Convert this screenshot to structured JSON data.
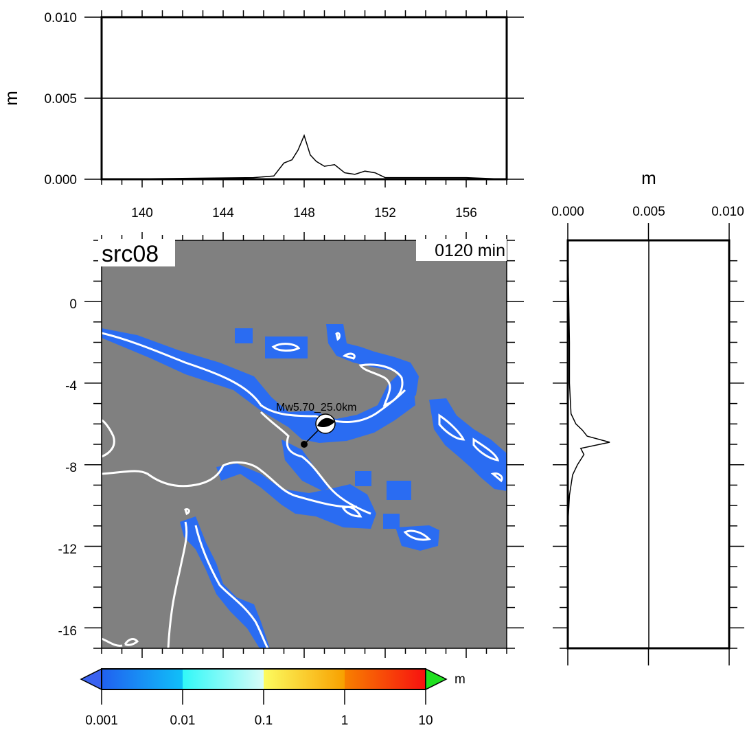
{
  "top_panel": {
    "ylabel": "m",
    "y_ticks": [
      "0.000",
      "0.005",
      "0.010"
    ],
    "x_ticks": [
      "140",
      "144",
      "148",
      "152",
      "156"
    ]
  },
  "side_panel": {
    "xlabel": "m",
    "x_ticks": [
      "0.000",
      "0.005",
      "0.010"
    ]
  },
  "map": {
    "title": "src08",
    "time": "0120 min",
    "y_ticks": [
      "0",
      "-4",
      "-8",
      "-12",
      "-16"
    ],
    "earthquake_label": "Mw5.70_25.0km",
    "ocean_color": "#808080",
    "wave_color": "#2a6cf2",
    "coast_color": "#ffffff"
  },
  "colorbar": {
    "unit": "m",
    "labels": [
      "0.001",
      "0.01",
      "0.1",
      "1",
      "10"
    ]
  },
  "chart_data": [
    {
      "type": "line",
      "title": "",
      "xlabel": "",
      "ylabel": "m",
      "xlim": [
        138,
        158
      ],
      "ylim": [
        0,
        0.01
      ],
      "x": [
        138,
        145.5,
        146.5,
        147.0,
        147.4,
        147.7,
        148.0,
        148.3,
        148.6,
        149.0,
        149.5,
        150.0,
        150.5,
        151.0,
        151.5,
        152.0,
        154.0,
        156.0,
        158
      ],
      "values": [
        0,
        0.0001,
        0.0002,
        0.001,
        0.0012,
        0.0018,
        0.0027,
        0.0015,
        0.0011,
        0.0008,
        0.0009,
        0.0004,
        0.0003,
        0.0005,
        0.0004,
        0.0001,
        0.0001,
        0.0001,
        0
      ]
    },
    {
      "type": "line",
      "title": "",
      "xlabel": "m",
      "ylabel": "",
      "xlim": [
        0,
        0.01
      ],
      "ylim": [
        -17,
        3
      ],
      "y": [
        3,
        -2,
        -4,
        -5.5,
        -6.0,
        -6.3,
        -6.6,
        -6.9,
        -7.2,
        -7.5,
        -8.0,
        -8.5,
        -9.0,
        -9.5,
        -11,
        -17
      ],
      "values": [
        0,
        0.0001,
        0.0001,
        0.0002,
        0.0005,
        0.0009,
        0.0012,
        0.0026,
        0.0008,
        0.001,
        0.0006,
        0.0003,
        0.0002,
        0.0001,
        0,
        0
      ]
    }
  ]
}
